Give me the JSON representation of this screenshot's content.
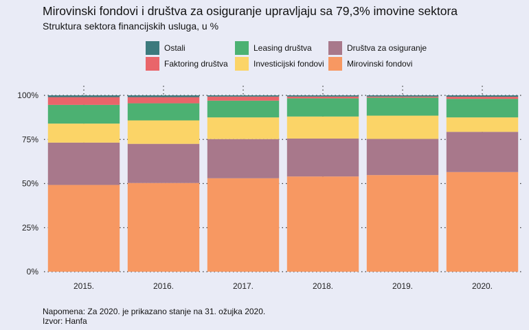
{
  "title": "Mirovinski fondovi i društva za osiguranje upravljaju sa 79,3% imovine sektora",
  "subtitle": "Struktura sektora financijskih usluga, u %",
  "note": "Napomena: Za 2020. je prikazano stanje na 31. ožujka 2020.",
  "source": "Izvor: Hanfa",
  "chart_data": {
    "type": "bar",
    "stacked": true,
    "categories": [
      "2015.",
      "2016.",
      "2017.",
      "2018.",
      "2019.",
      "2020."
    ],
    "y_ticks": [
      "0%",
      "25%",
      "50%",
      "75%",
      "100%"
    ],
    "ylim": [
      0,
      100
    ],
    "grid": "dotted",
    "legend_placement": "top",
    "series": [
      {
        "name": "Mirovinski fondovi",
        "color": "#f79862",
        "values": [
          49.2,
          50.3,
          53.0,
          54.0,
          54.8,
          56.5
        ]
      },
      {
        "name": "Društva za osiguranje",
        "color": "#a8788b",
        "values": [
          24.0,
          22.2,
          22.2,
          21.5,
          20.5,
          22.8
        ]
      },
      {
        "name": "Investicijski fondovi",
        "color": "#fbd467",
        "values": [
          10.8,
          13.3,
          12.3,
          12.5,
          13.2,
          8.2
        ]
      },
      {
        "name": "Leasing društva",
        "color": "#4cb172",
        "values": [
          10.6,
          9.7,
          9.5,
          10.3,
          10.2,
          10.5
        ]
      },
      {
        "name": "Faktoring društva",
        "color": "#e9656a",
        "values": [
          4.4,
          3.5,
          2.3,
          1.0,
          0.6,
          1.2
        ]
      },
      {
        "name": "Ostali",
        "color": "#3c7a7d",
        "values": [
          1.0,
          1.0,
          0.7,
          0.7,
          0.7,
          0.8
        ]
      }
    ],
    "legend_order": [
      "Ostali",
      "Leasing društva",
      "Društva za osiguranje",
      "Faktoring društva",
      "Investicijski fondovi",
      "Mirovinski fondovi"
    ]
  }
}
